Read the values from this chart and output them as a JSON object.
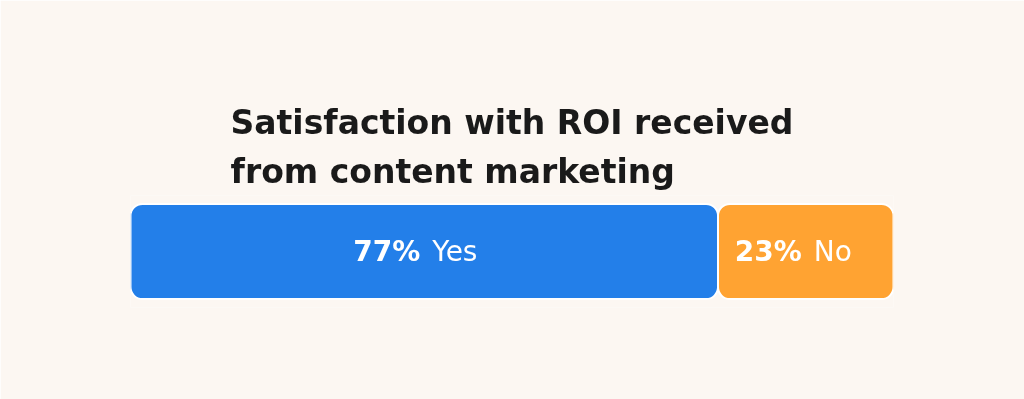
{
  "chart_data": {
    "type": "bar",
    "orientation": "horizontal",
    "stacked": true,
    "title": "Satisfaction with ROI received\nfrom content marketing",
    "categories": [
      null
    ],
    "series": [
      {
        "name": "Yes",
        "color": "#237fe9",
        "values": [
          77
        ],
        "value_labels": [
          "77%"
        ]
      },
      {
        "name": "No",
        "color": "#ffa332",
        "values": [
          23
        ],
        "value_labels": [
          "23%"
        ]
      }
    ],
    "tick_labels": false,
    "grid": false
  }
}
